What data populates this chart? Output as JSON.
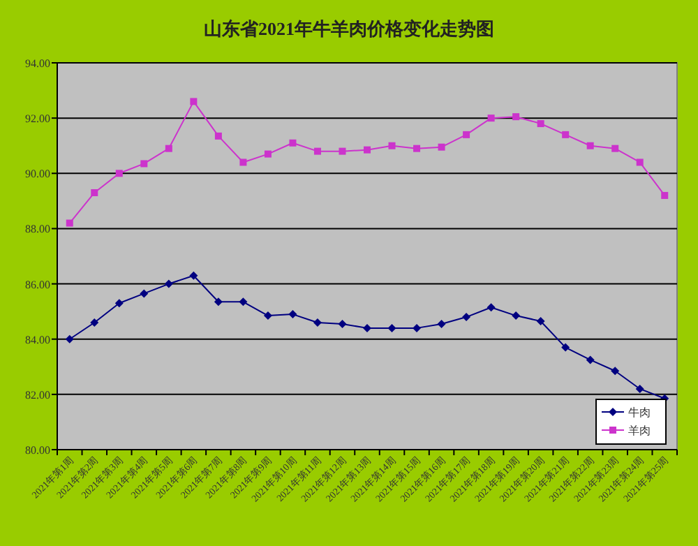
{
  "chart_data": {
    "type": "line",
    "title": "山东省2021年牛羊肉价格变化走势图",
    "categories": [
      "2021年第1周",
      "2021年第2周",
      "2021年第3周",
      "2021年第4周",
      "2021年第5周",
      "2021年第6周",
      "2021年第7周",
      "2021年第8周",
      "2021年第9周",
      "2021年第10周",
      "2021年第11周",
      "2021年第12周",
      "2021年第13周",
      "2021年第14周",
      "2021年第15周",
      "2021年第16周",
      "2021年第17周",
      "2021年第18周",
      "2021年第19周",
      "2021年第20周",
      "2021年第21周",
      "2021年第22周",
      "2021年第23周",
      "2021年第24周",
      "2021年第25周"
    ],
    "series": [
      {
        "name": "牛肉",
        "color": "#000080",
        "marker": "diamond",
        "values": [
          84.0,
          84.6,
          85.3,
          85.65,
          86.0,
          86.3,
          85.35,
          85.35,
          84.85,
          84.9,
          84.6,
          84.55,
          84.4,
          84.4,
          84.4,
          84.55,
          84.8,
          85.15,
          84.85,
          84.65,
          83.7,
          83.25,
          82.85,
          82.2,
          81.85
        ]
      },
      {
        "name": "羊肉",
        "color": "#cc33cc",
        "marker": "square",
        "values": [
          88.2,
          89.3,
          90.0,
          90.35,
          90.9,
          92.6,
          91.35,
          90.4,
          90.7,
          91.1,
          90.8,
          90.8,
          90.85,
          91.0,
          90.9,
          90.95,
          91.4,
          92.0,
          92.05,
          91.8,
          91.4,
          91.0,
          90.9,
          90.4,
          89.2
        ]
      }
    ],
    "ylim": [
      80,
      94
    ],
    "yticks": [
      {
        "value": 80,
        "label": "80.00"
      },
      {
        "value": 82,
        "label": "82.00"
      },
      {
        "value": 84,
        "label": "84.00"
      },
      {
        "value": 86,
        "label": "86.00"
      },
      {
        "value": 88,
        "label": "88.00"
      },
      {
        "value": 90,
        "label": "90.00"
      },
      {
        "value": 92,
        "label": "92.00"
      },
      {
        "value": 94,
        "label": "94.00"
      }
    ],
    "grid": "y",
    "legend": "bottom right"
  }
}
